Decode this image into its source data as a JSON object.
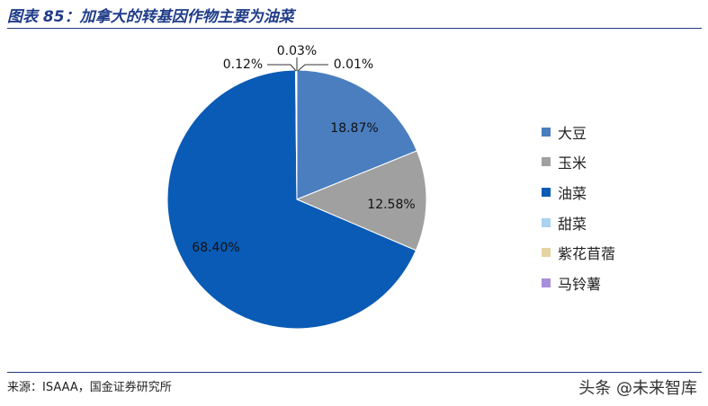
{
  "title": "图表 85：加拿大的转基因作物主要为油菜",
  "source": "来源：ISAAA，国金证券研究所",
  "watermark": "头条 @未来智库",
  "chart_data": {
    "type": "pie",
    "title": "图表 85：加拿大的转基因作物主要为油菜",
    "legend_position": "right",
    "slices": [
      {
        "name": "大豆",
        "value": 18.87,
        "label": "18.87%",
        "color": "#4a7ebf"
      },
      {
        "name": "玉米",
        "value": 12.58,
        "label": "12.58%",
        "color": "#a0a0a0"
      },
      {
        "name": "油菜",
        "value": 68.4,
        "label": "68.40%",
        "color": "#0a5bb5"
      },
      {
        "name": "甜菜",
        "value": 0.12,
        "label": "0.12%",
        "color": "#a9d3ee"
      },
      {
        "name": "紫花苜蓿",
        "value": 0.03,
        "label": "0.03%",
        "color": "#e4d3a4"
      },
      {
        "name": "马铃薯",
        "value": 0.01,
        "label": "0.01%",
        "color": "#a98ed9"
      }
    ]
  }
}
